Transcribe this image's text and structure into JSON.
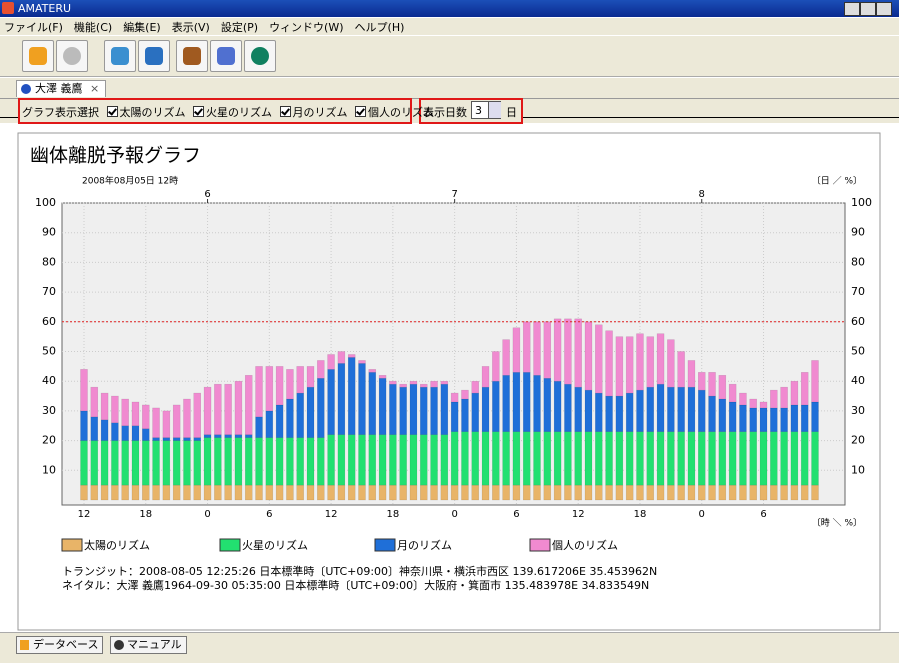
{
  "window": {
    "title": "AMATERU",
    "menu": [
      "ファイル(F)",
      "機能(C)",
      "編集(E)",
      "表示(V)",
      "設定(P)",
      "ウィンドウ(W)",
      "ヘルプ(H)"
    ],
    "tab": "大澤 義鷹",
    "options": {
      "label": "グラフ表示選択",
      "checkboxes": [
        "太陽のリズム",
        "火星のリズム",
        "月のリズム",
        "個人のリズム"
      ],
      "days_label": "表示日数",
      "days_value": 3,
      "days_unit": "日"
    },
    "status_buttons": [
      "データベース",
      "マニュアル"
    ]
  },
  "chart_data": {
    "type": "stacked_bar",
    "title": "幽体離脱予報グラフ",
    "subtitle": "2008年08月05日 12時",
    "top_unit_label": "〔日 ／ %〕",
    "bottom_unit_label": "〔時 ＼ %〕",
    "categories": [
      "12",
      null,
      null,
      null,
      null,
      null,
      "18",
      null,
      null,
      null,
      null,
      null,
      "0",
      null,
      null,
      null,
      null,
      null,
      "6",
      null,
      null,
      null,
      null,
      null,
      "12",
      null,
      null,
      null,
      null,
      null,
      "18",
      null,
      null,
      null,
      null,
      null,
      "0",
      null,
      null,
      null,
      null,
      null,
      "6",
      null,
      null,
      null,
      null,
      null,
      "12",
      null,
      null,
      null,
      null,
      null,
      "18",
      null,
      null,
      null,
      null,
      null,
      "0",
      null,
      null,
      null,
      null,
      null,
      "6",
      null,
      null,
      null,
      null,
      null
    ],
    "top_categories": [
      null,
      null,
      null,
      null,
      null,
      null,
      null,
      null,
      null,
      null,
      null,
      null,
      "6",
      null,
      null,
      null,
      null,
      null,
      null,
      null,
      null,
      null,
      null,
      null,
      null,
      null,
      null,
      null,
      null,
      null,
      null,
      null,
      null,
      null,
      null,
      null,
      "7",
      null,
      null,
      null,
      null,
      null,
      null,
      null,
      null,
      null,
      null,
      null,
      null,
      null,
      null,
      null,
      null,
      null,
      null,
      null,
      null,
      null,
      null,
      null,
      "8",
      null,
      null,
      null,
      null,
      null,
      null,
      null,
      null,
      null,
      null,
      null
    ],
    "series": [
      {
        "name": "太陽のリズム",
        "color": "#e8b468",
        "values": [
          5,
          5,
          5,
          5,
          5,
          5,
          5,
          5,
          5,
          5,
          5,
          5,
          5,
          5,
          5,
          5,
          5,
          5,
          5,
          5,
          5,
          5,
          5,
          5,
          5,
          5,
          5,
          5,
          5,
          5,
          5,
          5,
          5,
          5,
          5,
          5,
          5,
          5,
          5,
          5,
          5,
          5,
          5,
          5,
          5,
          5,
          5,
          5,
          5,
          5,
          5,
          5,
          5,
          5,
          5,
          5,
          5,
          5,
          5,
          5,
          5,
          5,
          5,
          5,
          5,
          5,
          5,
          5,
          5,
          5,
          5,
          5
        ]
      },
      {
        "name": "火星のリズム",
        "color": "#22e070",
        "values": [
          15,
          15,
          15,
          15,
          15,
          15,
          15,
          15,
          15,
          15,
          15,
          15,
          16,
          16,
          16,
          16,
          16,
          16,
          16,
          16,
          16,
          16,
          16,
          16,
          17,
          17,
          17,
          17,
          17,
          17,
          17,
          17,
          17,
          17,
          17,
          17,
          18,
          18,
          18,
          18,
          18,
          18,
          18,
          18,
          18,
          18,
          18,
          18,
          18,
          18,
          18,
          18,
          18,
          18,
          18,
          18,
          18,
          18,
          18,
          18,
          18,
          18,
          18,
          18,
          18,
          18,
          18,
          18,
          18,
          18,
          18,
          18
        ]
      },
      {
        "name": "月のリズム",
        "color": "#1f6fd8",
        "values": [
          10,
          8,
          7,
          6,
          5,
          5,
          4,
          1,
          1,
          1,
          1,
          1,
          1,
          1,
          1,
          1,
          1,
          7,
          9,
          11,
          13,
          15,
          17,
          20,
          22,
          24,
          26,
          24,
          21,
          19,
          17,
          16,
          17,
          16,
          16,
          17,
          10,
          11,
          13,
          15,
          17,
          19,
          20,
          20,
          19,
          18,
          17,
          16,
          15,
          14,
          13,
          12,
          12,
          13,
          14,
          15,
          16,
          15,
          15,
          15,
          14,
          12,
          11,
          10,
          9,
          8,
          8,
          8,
          8,
          9,
          9,
          10
        ]
      },
      {
        "name": "個人のリズム",
        "color": "#f08ad0",
        "values": [
          14,
          10,
          9,
          9,
          9,
          8,
          8,
          10,
          9,
          11,
          13,
          15,
          16,
          17,
          17,
          18,
          20,
          17,
          15,
          13,
          10,
          9,
          7,
          6,
          5,
          4,
          1,
          1,
          1,
          1,
          1,
          1,
          1,
          1,
          2,
          1,
          3,
          3,
          4,
          7,
          10,
          12,
          15,
          17,
          18,
          19,
          21,
          22,
          23,
          23,
          23,
          22,
          20,
          19,
          19,
          17,
          17,
          16,
          12,
          9,
          6,
          8,
          8,
          6,
          4,
          3,
          2,
          6,
          7,
          8,
          11,
          14
        ]
      }
    ],
    "ylim": [
      0,
      100
    ],
    "yticks": [
      10,
      20,
      30,
      40,
      50,
      60,
      70,
      80,
      90,
      100
    ],
    "threshold": 60,
    "threshold_color": "#e02020",
    "grid": true,
    "legend": "bottom"
  },
  "footer": [
    "トランジット：2008-08-05 12:25:26 日本標準時〔UTC+09:00〕神奈川県・横浜市西区 139.617206E 35.453962N",
    "ネイタル：大澤 義鷹1964-09-30 05:35:00 日本標準時〔UTC+09:00〕大阪府・箕面市 135.483978E 34.833549N"
  ]
}
